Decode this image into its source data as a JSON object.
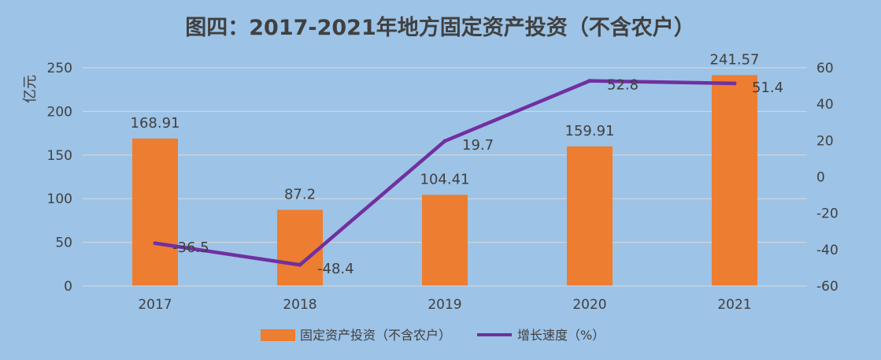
{
  "chart_data": {
    "type": "bar+line",
    "title": "图四：2017-2021年地方固定资产投资（不含农户）",
    "ylabel": "亿元",
    "categories": [
      "2017",
      "2018",
      "2019",
      "2020",
      "2021"
    ],
    "bar_series": {
      "name": "固定资产投资（不含农户）",
      "values": [
        168.91,
        87.2,
        104.41,
        159.91,
        241.57
      ],
      "labels": [
        "168.91",
        "87.2",
        "104.41",
        "159.91",
        "241.57"
      ],
      "color": "#ED7D31"
    },
    "line_series": {
      "name": "增长速度（%）",
      "values": [
        -36.5,
        -48.4,
        19.7,
        52.8,
        51.4
      ],
      "labels": [
        "-36.5",
        "-48.4",
        "19.7",
        "52.8",
        "51.4"
      ],
      "color": "#7030A0"
    },
    "ylim_left": [
      0,
      250
    ],
    "yticks_left": [
      "0",
      "50",
      "100",
      "150",
      "200",
      "250"
    ],
    "ylim_right": [
      -60,
      60
    ],
    "yticks_right": [
      "-60",
      "-40",
      "-20",
      "0",
      "20",
      "40",
      "60"
    ],
    "grid": true,
    "legend_position": "bottom"
  }
}
